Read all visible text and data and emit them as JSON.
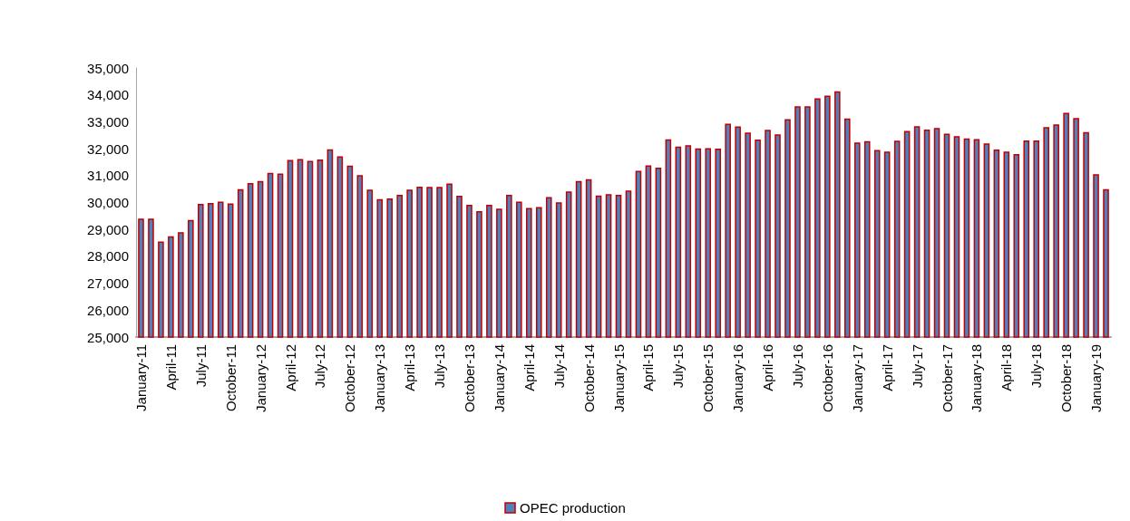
{
  "chart_data": {
    "type": "bar",
    "categories": [
      "January-11",
      null,
      null,
      "April-11",
      null,
      null,
      "July-11",
      null,
      null,
      "October-11",
      null,
      null,
      "January-12",
      null,
      null,
      "April-12",
      null,
      null,
      "July-12",
      null,
      null,
      "October-12",
      null,
      null,
      "January-13",
      null,
      null,
      "April-13",
      null,
      null,
      "July-13",
      null,
      null,
      "October-13",
      null,
      null,
      "January-14",
      null,
      null,
      "April-14",
      null,
      null,
      "July-14",
      null,
      null,
      "October-14",
      null,
      null,
      "January-15",
      null,
      null,
      "April-15",
      null,
      null,
      "July-15",
      null,
      null,
      "October-15",
      null,
      null,
      "January-16",
      null,
      null,
      "April-16",
      null,
      null,
      "July-16",
      null,
      null,
      "October-16",
      null,
      null,
      "January-17",
      null,
      null,
      "April-17",
      null,
      null,
      "July-17",
      null,
      null,
      "October-17",
      null,
      null,
      "January-18",
      null,
      null,
      "April-18",
      null,
      null,
      "July-18",
      null,
      null,
      "October-18",
      null,
      null,
      "January-19",
      null
    ],
    "series": [
      {
        "name": "OPEC production",
        "color": "#4f81bd",
        "values": [
          29400,
          29400,
          28550,
          28750,
          28900,
          29350,
          29950,
          29980,
          30030,
          29970,
          30500,
          30720,
          30800,
          31100,
          31080,
          31580,
          31620,
          31550,
          31600,
          31980,
          31720,
          31370,
          31020,
          30480,
          30130,
          30150,
          30290,
          30480,
          30590,
          30580,
          30580,
          30710,
          30250,
          29920,
          29680,
          29920,
          29770,
          30290,
          30030,
          29800,
          29830,
          30200,
          30010,
          30410,
          30800,
          30870,
          30260,
          30310,
          30290,
          30450,
          31180,
          31380,
          31300,
          32350,
          32080,
          32130,
          32010,
          32020,
          32000,
          32930,
          32830,
          32600,
          32340,
          32700,
          32530,
          33100,
          33580,
          33580,
          33870,
          33970,
          34130,
          33120,
          32230,
          32280,
          31950,
          31890,
          32300,
          32660,
          32840,
          32710,
          32770,
          32560,
          32470,
          32380,
          32360,
          32200,
          31970,
          31890,
          31800,
          32310,
          32310,
          32800,
          32900,
          33330,
          33140,
          32620,
          31050,
          30500
        ]
      }
    ],
    "ylim": [
      25000,
      35000
    ],
    "yticks": [
      {
        "value": 25000,
        "label": "25,000"
      },
      {
        "value": 26000,
        "label": "26,000"
      },
      {
        "value": 27000,
        "label": "27,000"
      },
      {
        "value": 28000,
        "label": "28,000"
      },
      {
        "value": 29000,
        "label": "29,000"
      },
      {
        "value": 30000,
        "label": "30,000"
      },
      {
        "value": 31000,
        "label": "31,000"
      },
      {
        "value": 32000,
        "label": "32,000"
      },
      {
        "value": 33000,
        "label": "33,000"
      },
      {
        "value": 34000,
        "label": "34,000"
      },
      {
        "value": 35000,
        "label": "35,000"
      }
    ],
    "grid": false,
    "legend": "bottom"
  }
}
